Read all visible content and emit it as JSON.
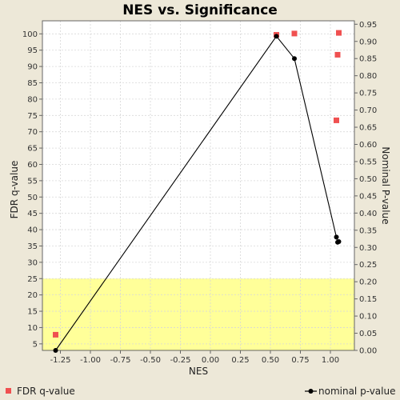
{
  "chart_data": {
    "type": "scatter",
    "title": "NES vs. Significance",
    "xlabel": "NES",
    "ylabel_left": "FDR q-value",
    "ylabel_right": "Nominal P-value",
    "xlim": [
      -1.4,
      1.2
    ],
    "ylim_left": [
      3,
      104
    ],
    "ylim_right": [
      0.0,
      0.96
    ],
    "x_ticks": [
      -1.25,
      -1.0,
      -0.75,
      -0.5,
      -0.25,
      0.0,
      0.25,
      0.5,
      0.75,
      1.0
    ],
    "x_tick_labels": [
      "-1.25",
      "-1.00",
      "-0.75",
      "-0.50",
      "-0.25",
      "0.00",
      "0.25",
      "0.50",
      "0.75",
      "1.00"
    ],
    "y_left_ticks": [
      5,
      10,
      15,
      20,
      25,
      30,
      35,
      40,
      45,
      50,
      55,
      60,
      65,
      70,
      75,
      80,
      85,
      90,
      95,
      100
    ],
    "y_left_tick_labels": [
      "5",
      "10",
      "15",
      "20",
      "25",
      "30",
      "35",
      "40",
      "45",
      "50",
      "55",
      "60",
      "65",
      "70",
      "75",
      "80",
      "85",
      "90",
      "95",
      "100"
    ],
    "y_right_ticks": [
      0.0,
      0.05,
      0.1,
      0.15,
      0.2,
      0.25,
      0.3,
      0.35,
      0.4,
      0.45,
      0.5,
      0.55,
      0.6,
      0.65,
      0.7,
      0.75,
      0.8,
      0.85,
      0.9,
      0.95
    ],
    "y_right_tick_labels": [
      "0.00",
      "0.05",
      "0.10",
      "0.15",
      "0.20",
      "0.25",
      "0.30",
      "0.35",
      "0.40",
      "0.45",
      "0.50",
      "0.55",
      "0.60",
      "0.65",
      "0.70",
      "0.75",
      "0.80",
      "0.85",
      "0.90",
      "0.95"
    ],
    "highlight_band_left": [
      3,
      25
    ],
    "grid": true,
    "legend_position": "bottom",
    "series": [
      {
        "name": "FDR q-value",
        "axis": "left",
        "marker": "square",
        "color": "#f05050",
        "points": [
          {
            "x": -1.29,
            "y": 7.8
          },
          {
            "x": 0.55,
            "y": 99.7
          },
          {
            "x": 0.7,
            "y": 100.1
          },
          {
            "x": 1.07,
            "y": 100.3
          },
          {
            "x": 1.06,
            "y": 93.6
          },
          {
            "x": 1.05,
            "y": 73.5
          }
        ]
      },
      {
        "name": "nominal p-value",
        "axis": "right",
        "marker": "circle",
        "line": true,
        "color": "#000000",
        "points": [
          {
            "x": -1.29,
            "y": 0.0
          },
          {
            "x": 0.55,
            "y": 0.915
          },
          {
            "x": 0.7,
            "y": 0.85
          },
          {
            "x": 1.05,
            "y": 0.33
          },
          {
            "x": 1.06,
            "y": 0.315
          },
          {
            "x": 1.07,
            "y": 0.317
          }
        ]
      }
    ],
    "colors": {
      "plot_background": "#ffffff",
      "highlight_band": "#ffff99",
      "grid": "#d8d8d8",
      "page_background": "#ede8d8"
    }
  }
}
